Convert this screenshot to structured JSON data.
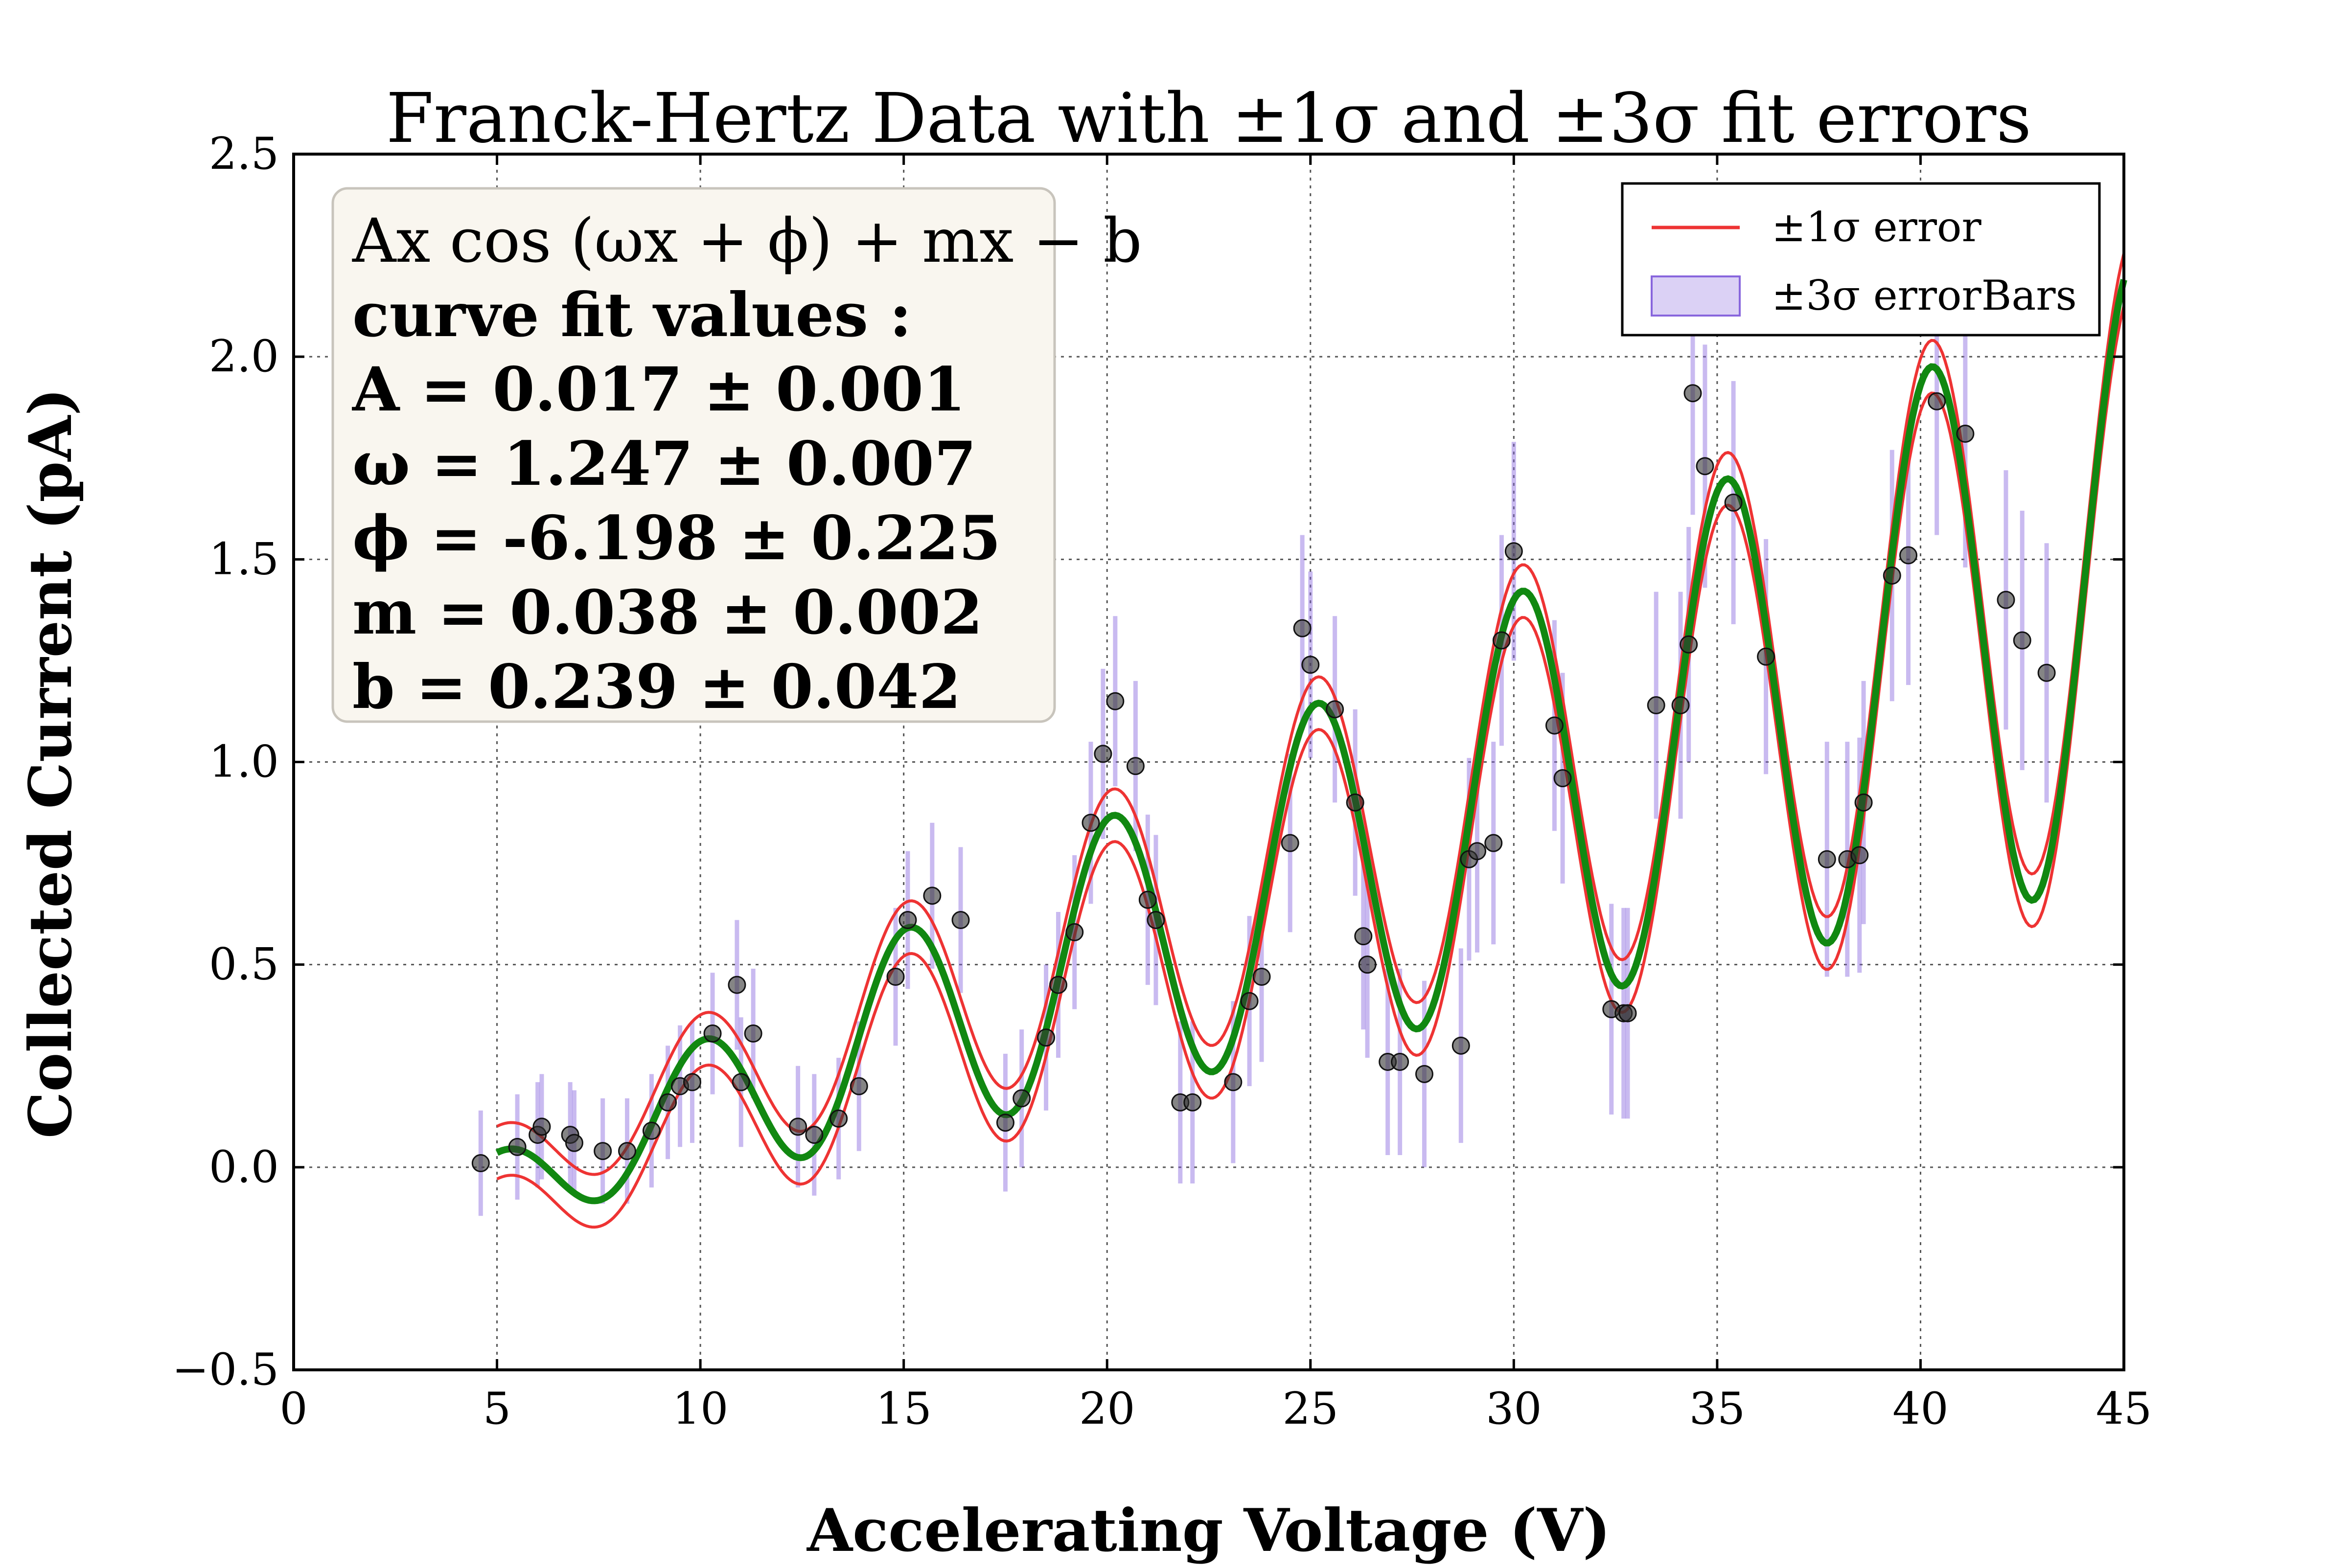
{
  "chart_data": {
    "type": "scatter",
    "title": "Franck-Hertz Data with ±1σ and ±3σ fit errors",
    "xlabel": "Accelerating Voltage (V)",
    "ylabel": "Collected Current (pA)",
    "xlim": [
      0,
      45
    ],
    "ylim": [
      -0.5,
      2.5
    ],
    "x_ticks": [
      0,
      5,
      10,
      15,
      20,
      25,
      30,
      35,
      40,
      45
    ],
    "x_tick_labels": [
      "0",
      "5",
      "10",
      "15",
      "20",
      "25",
      "30",
      "35",
      "40",
      "45"
    ],
    "y_ticks": [
      -0.5,
      0.0,
      0.5,
      1.0,
      1.5,
      2.0,
      2.5
    ],
    "y_tick_labels": [
      "−0.5",
      "0.0",
      "0.5",
      "1.0",
      "1.5",
      "2.0",
      "2.5"
    ],
    "grid": true,
    "legend": {
      "placement": "top-right",
      "entries": [
        {
          "label": "±1σ  error",
          "color": "#ee3333",
          "kind": "line"
        },
        {
          "label": "±3σ  errorBars",
          "color": "#8866dd",
          "kind": "patch"
        }
      ]
    },
    "fit_box": {
      "lines": [
        "Ax cos (ωx + ϕ) + mx − b",
        "curve  fit  values :",
        "A = 0.017 ± 0.001",
        "ω = 1.247 ± 0.007",
        "ϕ = -6.198 ± 0.225",
        "m = 0.038 ± 0.002",
        "b = 0.239 ± 0.042"
      ]
    },
    "fit": {
      "model": "A*x*cos(w*x + phi) + m*x - b",
      "A": 0.017,
      "w": 1.247,
      "phi": -6.198,
      "m": 0.038,
      "b": 0.239,
      "x_range": [
        5,
        45
      ],
      "sigma_band": 0.065,
      "fit_color": "#118811",
      "band_color": "#ee3333"
    },
    "points": [
      {
        "x": 4.6,
        "y": 0.01,
        "err": 0.13
      },
      {
        "x": 5.5,
        "y": 0.05,
        "err": 0.13
      },
      {
        "x": 6.0,
        "y": 0.08,
        "err": 0.13
      },
      {
        "x": 6.1,
        "y": 0.1,
        "err": 0.13
      },
      {
        "x": 6.8,
        "y": 0.08,
        "err": 0.13
      },
      {
        "x": 6.9,
        "y": 0.06,
        "err": 0.13
      },
      {
        "x": 7.6,
        "y": 0.04,
        "err": 0.13
      },
      {
        "x": 8.2,
        "y": 0.04,
        "err": 0.13
      },
      {
        "x": 8.8,
        "y": 0.09,
        "err": 0.14
      },
      {
        "x": 9.2,
        "y": 0.16,
        "err": 0.14
      },
      {
        "x": 9.5,
        "y": 0.2,
        "err": 0.15
      },
      {
        "x": 9.8,
        "y": 0.21,
        "err": 0.15
      },
      {
        "x": 10.3,
        "y": 0.33,
        "err": 0.15
      },
      {
        "x": 10.9,
        "y": 0.45,
        "err": 0.16
      },
      {
        "x": 11.3,
        "y": 0.33,
        "err": 0.16
      },
      {
        "x": 11.0,
        "y": 0.21,
        "err": 0.16
      },
      {
        "x": 12.4,
        "y": 0.1,
        "err": 0.15
      },
      {
        "x": 12.8,
        "y": 0.08,
        "err": 0.15
      },
      {
        "x": 13.4,
        "y": 0.12,
        "err": 0.15
      },
      {
        "x": 13.9,
        "y": 0.2,
        "err": 0.16
      },
      {
        "x": 14.8,
        "y": 0.47,
        "err": 0.17
      },
      {
        "x": 15.1,
        "y": 0.61,
        "err": 0.17
      },
      {
        "x": 15.7,
        "y": 0.67,
        "err": 0.18
      },
      {
        "x": 16.4,
        "y": 0.61,
        "err": 0.18
      },
      {
        "x": 17.5,
        "y": 0.11,
        "err": 0.17
      },
      {
        "x": 17.9,
        "y": 0.17,
        "err": 0.17
      },
      {
        "x": 18.5,
        "y": 0.32,
        "err": 0.18
      },
      {
        "x": 18.8,
        "y": 0.45,
        "err": 0.18
      },
      {
        "x": 19.2,
        "y": 0.58,
        "err": 0.19
      },
      {
        "x": 19.6,
        "y": 0.85,
        "err": 0.2
      },
      {
        "x": 19.9,
        "y": 1.02,
        "err": 0.21
      },
      {
        "x": 20.2,
        "y": 1.15,
        "err": 0.21
      },
      {
        "x": 20.7,
        "y": 0.99,
        "err": 0.21
      },
      {
        "x": 21.0,
        "y": 0.66,
        "err": 0.21
      },
      {
        "x": 21.2,
        "y": 0.61,
        "err": 0.21
      },
      {
        "x": 21.8,
        "y": 0.16,
        "err": 0.2
      },
      {
        "x": 22.1,
        "y": 0.16,
        "err": 0.2
      },
      {
        "x": 23.1,
        "y": 0.21,
        "err": 0.2
      },
      {
        "x": 23.5,
        "y": 0.41,
        "err": 0.21
      },
      {
        "x": 23.8,
        "y": 0.47,
        "err": 0.21
      },
      {
        "x": 24.5,
        "y": 0.8,
        "err": 0.22
      },
      {
        "x": 24.8,
        "y": 1.33,
        "err": 0.23
      },
      {
        "x": 25.0,
        "y": 1.24,
        "err": 0.23
      },
      {
        "x": 25.6,
        "y": 1.13,
        "err": 0.23
      },
      {
        "x": 26.1,
        "y": 0.9,
        "err": 0.23
      },
      {
        "x": 26.3,
        "y": 0.57,
        "err": 0.23
      },
      {
        "x": 26.4,
        "y": 0.5,
        "err": 0.23
      },
      {
        "x": 26.9,
        "y": 0.26,
        "err": 0.23
      },
      {
        "x": 27.2,
        "y": 0.26,
        "err": 0.23
      },
      {
        "x": 27.8,
        "y": 0.23,
        "err": 0.23
      },
      {
        "x": 28.7,
        "y": 0.3,
        "err": 0.24
      },
      {
        "x": 28.9,
        "y": 0.76,
        "err": 0.25
      },
      {
        "x": 29.1,
        "y": 0.78,
        "err": 0.25
      },
      {
        "x": 29.5,
        "y": 0.8,
        "err": 0.25
      },
      {
        "x": 29.7,
        "y": 1.3,
        "err": 0.26
      },
      {
        "x": 30.0,
        "y": 1.52,
        "err": 0.27
      },
      {
        "x": 31.0,
        "y": 1.09,
        "err": 0.26
      },
      {
        "x": 31.2,
        "y": 0.96,
        "err": 0.26
      },
      {
        "x": 32.4,
        "y": 0.39,
        "err": 0.26
      },
      {
        "x": 32.7,
        "y": 0.38,
        "err": 0.26
      },
      {
        "x": 32.8,
        "y": 0.38,
        "err": 0.26
      },
      {
        "x": 33.5,
        "y": 1.14,
        "err": 0.28
      },
      {
        "x": 34.1,
        "y": 1.14,
        "err": 0.28
      },
      {
        "x": 34.3,
        "y": 1.29,
        "err": 0.29
      },
      {
        "x": 34.4,
        "y": 1.91,
        "err": 0.3
      },
      {
        "x": 34.7,
        "y": 1.73,
        "err": 0.3
      },
      {
        "x": 35.4,
        "y": 1.64,
        "err": 0.3
      },
      {
        "x": 36.2,
        "y": 1.26,
        "err": 0.29
      },
      {
        "x": 37.7,
        "y": 0.76,
        "err": 0.29
      },
      {
        "x": 38.2,
        "y": 0.76,
        "err": 0.29
      },
      {
        "x": 38.5,
        "y": 0.77,
        "err": 0.29
      },
      {
        "x": 38.6,
        "y": 0.9,
        "err": 0.3
      },
      {
        "x": 39.3,
        "y": 1.46,
        "err": 0.31
      },
      {
        "x": 39.7,
        "y": 1.51,
        "err": 0.32
      },
      {
        "x": 40.4,
        "y": 1.89,
        "err": 0.33
      },
      {
        "x": 41.1,
        "y": 1.81,
        "err": 0.33
      },
      {
        "x": 42.1,
        "y": 1.4,
        "err": 0.32
      },
      {
        "x": 42.5,
        "y": 1.3,
        "err": 0.32
      },
      {
        "x": 43.1,
        "y": 1.22,
        "err": 0.32
      }
    ],
    "point_color": "#333333",
    "errorbar_color": "#8866dd"
  }
}
